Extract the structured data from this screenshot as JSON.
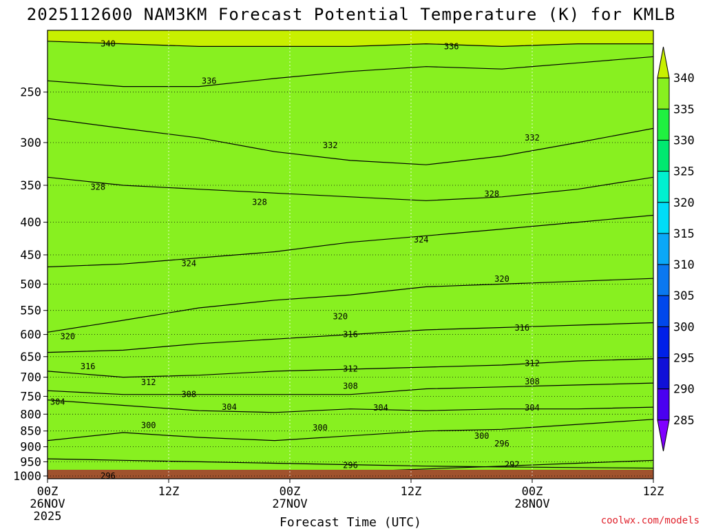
{
  "title": "2025112600 NAM3KM Forecast Potential Temperature (K) for KMLB",
  "credit": "coolwx.com/models",
  "chart_data": {
    "type": "heatmap",
    "variable": "Potential Temperature",
    "units": "K",
    "title": "2025112600 NAM3KM Forecast Potential Temperature (K) for KMLB",
    "xlabel": "Forecast Time (UTC)",
    "ylabel": "",
    "xlim_hours": [
      0,
      60
    ],
    "ylim_hpa": [
      1010,
      200
    ],
    "y_scale": "log-pressure",
    "grid": true,
    "x_ticks": [
      {
        "hour": 0,
        "label": "00Z",
        "sub": "26NOV",
        "sub2": "2025"
      },
      {
        "hour": 12,
        "label": "12Z",
        "sub": "",
        "sub2": ""
      },
      {
        "hour": 24,
        "label": "00Z",
        "sub": "27NOV",
        "sub2": ""
      },
      {
        "hour": 36,
        "label": "12Z",
        "sub": "",
        "sub2": ""
      },
      {
        "hour": 48,
        "label": "00Z",
        "sub": "28NOV",
        "sub2": ""
      },
      {
        "hour": 60,
        "label": "12Z",
        "sub": "",
        "sub2": ""
      }
    ],
    "y_ticks": [
      250,
      300,
      350,
      400,
      450,
      500,
      550,
      600,
      650,
      700,
      750,
      800,
      850,
      900,
      950,
      1000
    ],
    "colorbar": {
      "levels": [
        285,
        290,
        295,
        300,
        305,
        310,
        315,
        320,
        325,
        330,
        335,
        340
      ],
      "labels": [
        "285",
        "290",
        "295",
        "300",
        "305",
        "310",
        "315",
        "320",
        "325",
        "330",
        "335",
        "340"
      ],
      "colors": [
        "#8000ff",
        "#4a00f0",
        "#1010d8",
        "#0020e8",
        "#0048ec",
        "#0a78f0",
        "#0aa8f8",
        "#00dcf8",
        "#00f0d0",
        "#00e870",
        "#20f040",
        "#88f020",
        "#c8f000"
      ]
    },
    "series": [
      {
        "theta": 292,
        "p": [
          940,
          945,
          950,
          955,
          960,
          965,
          968,
          970,
          972
        ]
      },
      {
        "theta": 296,
        "p": [
          1000,
          1000,
          1000,
          995,
          985,
          975,
          965,
          955,
          945
        ]
      },
      {
        "theta": 300,
        "p": [
          880,
          855,
          870,
          880,
          865,
          850,
          845,
          830,
          815
        ]
      },
      {
        "theta": 304,
        "p": [
          760,
          775,
          790,
          795,
          785,
          790,
          785,
          785,
          780
        ]
      },
      {
        "theta": 308,
        "p": [
          735,
          745,
          745,
          745,
          745,
          730,
          725,
          720,
          715
        ]
      },
      {
        "theta": 312,
        "p": [
          685,
          700,
          695,
          685,
          680,
          675,
          670,
          660,
          655
        ]
      },
      {
        "theta": 316,
        "p": [
          640,
          635,
          620,
          610,
          600,
          590,
          585,
          580,
          575
        ]
      },
      {
        "theta": 320,
        "p": [
          595,
          570,
          545,
          530,
          520,
          505,
          500,
          495,
          490
        ]
      },
      {
        "theta": 324,
        "p": [
          470,
          465,
          455,
          445,
          430,
          420,
          410,
          400,
          390
        ]
      },
      {
        "theta": 328,
        "p": [
          340,
          350,
          355,
          360,
          365,
          370,
          365,
          355,
          340
        ]
      },
      {
        "theta": 332,
        "p": [
          275,
          285,
          295,
          310,
          320,
          325,
          315,
          300,
          285
        ]
      },
      {
        "theta": 336,
        "p": [
          240,
          245,
          245,
          238,
          232,
          228,
          230,
          225,
          220
        ]
      },
      {
        "theta": 340,
        "p": [
          208,
          210,
          212,
          212,
          212,
          210,
          212,
          210,
          210
        ]
      }
    ],
    "contour_labels": [
      {
        "value": "340",
        "hour": 6,
        "p": 210
      },
      {
        "value": "336",
        "hour": 16,
        "p": 240
      },
      {
        "value": "336",
        "hour": 40,
        "p": 212
      },
      {
        "value": "332",
        "hour": 28,
        "p": 303
      },
      {
        "value": "332",
        "hour": 48,
        "p": 295
      },
      {
        "value": "328",
        "hour": 5,
        "p": 352
      },
      {
        "value": "328",
        "hour": 21,
        "p": 372
      },
      {
        "value": "328",
        "hour": 44,
        "p": 361
      },
      {
        "value": "324",
        "hour": 14,
        "p": 464
      },
      {
        "value": "324",
        "hour": 37,
        "p": 426
      },
      {
        "value": "320",
        "hour": 2,
        "p": 604
      },
      {
        "value": "320",
        "hour": 29,
        "p": 562
      },
      {
        "value": "320",
        "hour": 45,
        "p": 491
      },
      {
        "value": "316",
        "hour": 4,
        "p": 673
      },
      {
        "value": "316",
        "hour": 30,
        "p": 600
      },
      {
        "value": "316",
        "hour": 47,
        "p": 586
      },
      {
        "value": "312",
        "hour": 10,
        "p": 713
      },
      {
        "value": "312",
        "hour": 30,
        "p": 679
      },
      {
        "value": "312",
        "hour": 48,
        "p": 666
      },
      {
        "value": "308",
        "hour": 14,
        "p": 745
      },
      {
        "value": "308",
        "hour": 30,
        "p": 723
      },
      {
        "value": "308",
        "hour": 48,
        "p": 711
      },
      {
        "value": "304",
        "hour": 1,
        "p": 765
      },
      {
        "value": "304",
        "hour": 18,
        "p": 780
      },
      {
        "value": "304",
        "hour": 33,
        "p": 782
      },
      {
        "value": "304",
        "hour": 48,
        "p": 782
      },
      {
        "value": "300",
        "hour": 10,
        "p": 833
      },
      {
        "value": "300",
        "hour": 27,
        "p": 840
      },
      {
        "value": "300",
        "hour": 43,
        "p": 866
      },
      {
        "value": "296",
        "hour": 6,
        "p": 1000
      },
      {
        "value": "296",
        "hour": 30,
        "p": 962
      },
      {
        "value": "296",
        "hour": 45,
        "p": 890
      },
      {
        "value": "292",
        "hour": 46,
        "p": 960
      }
    ]
  }
}
